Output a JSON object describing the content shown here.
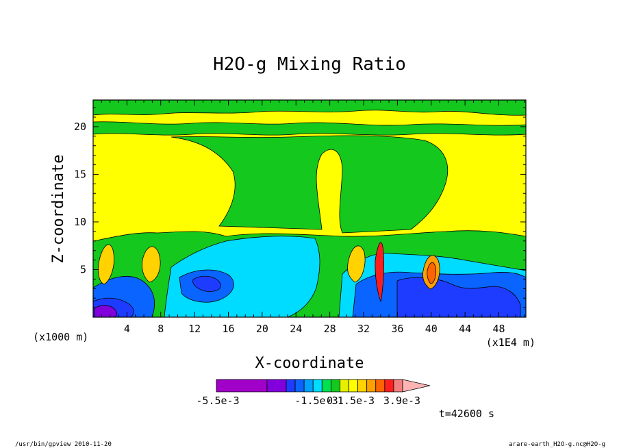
{
  "chart_data": {
    "type": "heatmap",
    "title": "H2O-g Mixing Ratio",
    "xlabel": "X-coordinate",
    "ylabel": "Z-coordinate",
    "x_unit_left": "(x1000 m)",
    "x_unit_right": "(x1E4 m)",
    "xlim": [
      0,
      51.2
    ],
    "ylim": [
      0,
      22.8
    ],
    "x_ticks": [
      4,
      8,
      12,
      16,
      20,
      24,
      28,
      32,
      36,
      40,
      44,
      48
    ],
    "y_ticks": [
      5,
      10,
      15,
      20
    ],
    "x_tick_labels": [
      "4",
      "8",
      "12",
      "16",
      "20",
      "24",
      "28",
      "32",
      "36",
      "40",
      "44",
      "48"
    ],
    "y_tick_labels": [
      "5",
      "10",
      "15",
      "20"
    ],
    "time_label": "t=42600 s",
    "colorbar": {
      "colors": [
        "#a000c8",
        "#8200dc",
        "#1e3cff",
        "#0a64ff",
        "#00a0ff",
        "#00dcff",
        "#00e150",
        "#14c81e",
        "#e6f000",
        "#ffff00",
        "#ffd200",
        "#ffa000",
        "#ff6400",
        "#ff1e1e",
        "#f08080",
        "#ffb4b4"
      ],
      "labels": [
        "-5.5e-3",
        "-1.5e-3",
        "0",
        "1.5e-3",
        "3.9e-3"
      ]
    },
    "field_description_layers": [
      {
        "level": "yellow",
        "color": "#ffff00"
      },
      {
        "level": "green",
        "color": "#14c81e"
      },
      {
        "level": "cyan",
        "color": "#00dcff"
      },
      {
        "level": "blue",
        "color": "#0a64ff"
      },
      {
        "level": "darkblue",
        "color": "#1e3cff"
      },
      {
        "level": "purple",
        "color": "#8200dc"
      },
      {
        "level": "orange",
        "color": "#ffd200"
      },
      {
        "level": "red",
        "color": "#ff1e1e"
      }
    ]
  },
  "footer": {
    "left": "/usr/bin/gpview  2010-11-20",
    "right": "arare-earth_H2O-g.nc@H2O-g"
  }
}
